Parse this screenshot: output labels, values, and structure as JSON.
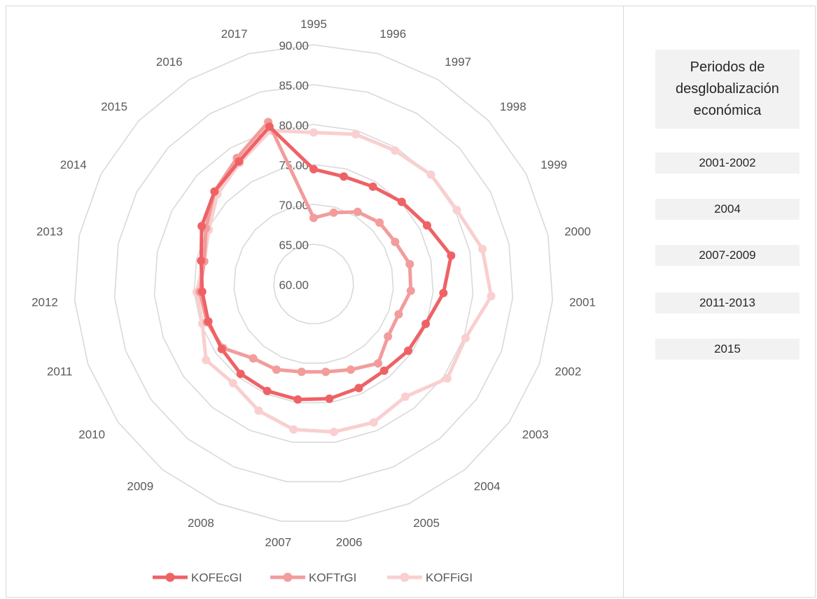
{
  "chart_data": {
    "type": "radar",
    "categories": [
      "1995",
      "1996",
      "1997",
      "1998",
      "1999",
      "2000",
      "2001",
      "2002",
      "2003",
      "2004",
      "2005",
      "2006",
      "2007",
      "2008",
      "2009",
      "2010",
      "2011",
      "2012",
      "2013",
      "2014",
      "2015",
      "2016",
      "2017"
    ],
    "radial_ticks": [
      "60.00",
      "65.00",
      "70.00",
      "75.00",
      "80.00",
      "85.00",
      "90.00"
    ],
    "rlim": [
      60,
      90
    ],
    "grid": true,
    "legend_position": "bottom",
    "series": [
      {
        "name": "KOFEcGI",
        "color": "#ee6266",
        "values": [
          74.4,
          74.0,
          74.3,
          75.1,
          76.0,
          77.6,
          76.3,
          74.9,
          74.5,
          74.0,
          74.2,
          74.5,
          74.6,
          74.6,
          74.5,
          74.1,
          74.0,
          74.0,
          74.4,
          75.8,
          77.0,
          78.0,
          80.5
        ]
      },
      {
        "name": "KOFTrGI",
        "color": "#f29c9c",
        "values": [
          68.3,
          69.3,
          70.6,
          71.3,
          71.5,
          72.3,
          72.2,
          71.3,
          71.4,
          72.8,
          71.7,
          71.1,
          71.1,
          71.7,
          72.0,
          73.9,
          74.2,
          74.3,
          74.0,
          75.2,
          77.0,
          78.5,
          81.1
        ]
      },
      {
        "name": "KOFFiGI",
        "color": "#f9cfcf",
        "values": [
          79.0,
          79.5,
          79.6,
          80.1,
          80.2,
          81.6,
          82.3,
          80.2,
          80.5,
          78.2,
          78.9,
          78.7,
          78.4,
          77.3,
          76.0,
          76.5,
          74.8,
          74.7,
          74.0,
          74.8,
          76.5,
          77.8,
          80.0
        ]
      }
    ]
  },
  "side_panel": {
    "title": "Periodos de\ndesglobalización\neconómica",
    "items": [
      "2001-2002",
      "2004",
      "2007-2009",
      "2011-2013",
      "2015"
    ]
  }
}
